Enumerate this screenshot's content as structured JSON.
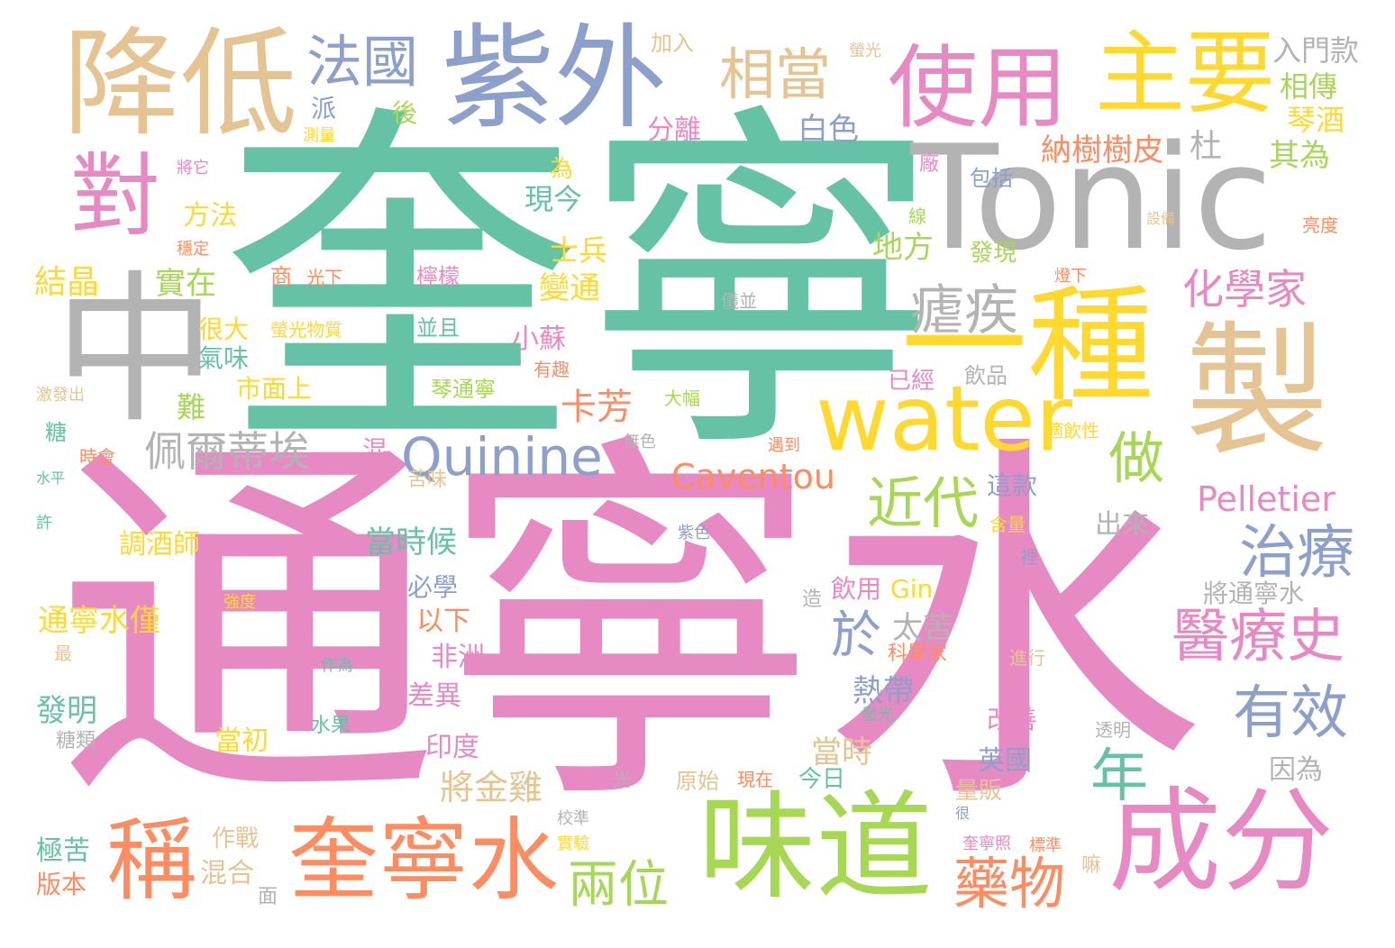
{
  "colors": {
    "green": "#66c2a5",
    "orange": "#fc8d62",
    "blue": "#8da0cb",
    "pink": "#e78ac3",
    "lime": "#a6d854",
    "yellow": "#ffd92f",
    "tan": "#e5c494",
    "gray": "#b3b3b3"
  },
  "words": [
    {
      "text": "奎寧",
      "color": "green"
    },
    {
      "text": "通寧水",
      "color": "pink"
    },
    {
      "text": "Tonic",
      "color": "gray"
    },
    {
      "text": "中",
      "color": "gray"
    },
    {
      "text": "降低",
      "color": "tan"
    },
    {
      "text": "紫外",
      "color": "blue"
    },
    {
      "text": "使用",
      "color": "pink"
    },
    {
      "text": "主要",
      "color": "yellow"
    },
    {
      "text": "對",
      "color": "pink"
    },
    {
      "text": "一種",
      "color": "yellow"
    },
    {
      "text": "製",
      "color": "tan"
    },
    {
      "text": "water",
      "color": "yellow"
    },
    {
      "text": "味道",
      "color": "lime"
    },
    {
      "text": "成分",
      "color": "pink"
    },
    {
      "text": "奎寧水",
      "color": "orange"
    },
    {
      "text": "稱",
      "color": "orange"
    },
    {
      "text": "Quinine",
      "color": "blue"
    },
    {
      "text": "法國",
      "color": "blue"
    },
    {
      "text": "相當",
      "color": "tan"
    },
    {
      "text": "瘧疾",
      "color": "gray"
    },
    {
      "text": "化學家",
      "color": "pink"
    },
    {
      "text": "近代",
      "color": "lime"
    },
    {
      "text": "做",
      "color": "lime"
    },
    {
      "text": "治療",
      "color": "blue"
    },
    {
      "text": "醫療史",
      "color": "pink"
    },
    {
      "text": "有效",
      "color": "blue"
    },
    {
      "text": "年",
      "color": "green"
    },
    {
      "text": "藥物",
      "color": "orange"
    },
    {
      "text": "兩位",
      "color": "lime"
    },
    {
      "text": "於",
      "color": "blue"
    },
    {
      "text": "佩爾蒂埃",
      "color": "gray"
    },
    {
      "text": "Caventou",
      "color": "orange"
    },
    {
      "text": "Pelletier",
      "color": "pink"
    },
    {
      "text": "卡芳",
      "color": "orange"
    },
    {
      "text": "納樹樹皮",
      "color": "orange"
    },
    {
      "text": "杜",
      "color": "gray"
    },
    {
      "text": "其為",
      "color": "lime"
    },
    {
      "text": "相傳",
      "color": "lime"
    },
    {
      "text": "琴酒",
      "color": "yellow"
    },
    {
      "text": "入門款",
      "color": "gray"
    },
    {
      "text": "白色",
      "color": "blue"
    },
    {
      "text": "分離",
      "color": "pink"
    },
    {
      "text": "加入",
      "color": "tan"
    },
    {
      "text": "螢光",
      "color": "tan"
    },
    {
      "text": "派",
      "color": "blue"
    },
    {
      "text": "後",
      "color": "lime"
    },
    {
      "text": "測量",
      "color": "yellow"
    },
    {
      "text": "將它",
      "color": "pink"
    },
    {
      "text": "方法",
      "color": "yellow"
    },
    {
      "text": "穩定",
      "color": "orange"
    },
    {
      "text": "結晶",
      "color": "yellow"
    },
    {
      "text": "實在",
      "color": "lime"
    },
    {
      "text": "商",
      "color": "orange"
    },
    {
      "text": "光下",
      "color": "orange"
    },
    {
      "text": "檸檬",
      "color": "pink"
    },
    {
      "text": "士兵",
      "color": "yellow"
    },
    {
      "text": "變通",
      "color": "yellow"
    },
    {
      "text": "現今",
      "color": "green"
    },
    {
      "text": "為",
      "color": "yellow"
    },
    {
      "text": "地方",
      "color": "lime"
    },
    {
      "text": "廠",
      "color": "pink"
    },
    {
      "text": "包括",
      "color": "blue"
    },
    {
      "text": "線",
      "color": "lime"
    },
    {
      "text": "發現",
      "color": "lime"
    },
    {
      "text": "設備",
      "color": "tan"
    },
    {
      "text": "亮度",
      "color": "orange"
    },
    {
      "text": "燈下",
      "color": "orange"
    },
    {
      "text": "儀並",
      "color": "gray"
    },
    {
      "text": "很大",
      "color": "yellow"
    },
    {
      "text": "氣味",
      "color": "green"
    },
    {
      "text": "螢光物質",
      "color": "yellow"
    },
    {
      "text": "並且",
      "color": "green"
    },
    {
      "text": "小蘇",
      "color": "pink"
    },
    {
      "text": "有趣",
      "color": "orange"
    },
    {
      "text": "激發出",
      "color": "tan"
    },
    {
      "text": "難",
      "color": "lime"
    },
    {
      "text": "市面上",
      "color": "yellow"
    },
    {
      "text": "琴通寧",
      "color": "lime"
    },
    {
      "text": "大幅",
      "color": "lime"
    },
    {
      "text": "已經",
      "color": "pink"
    },
    {
      "text": "飲品",
      "color": "gray"
    },
    {
      "text": "適飲性",
      "color": "yellow"
    },
    {
      "text": "糖",
      "color": "green"
    },
    {
      "text": "時會",
      "color": "orange"
    },
    {
      "text": "混",
      "color": "pink"
    },
    {
      "text": "無色",
      "color": "gray"
    },
    {
      "text": "遇到",
      "color": "orange"
    },
    {
      "text": "這款",
      "color": "blue"
    },
    {
      "text": "水平",
      "color": "green"
    },
    {
      "text": "苦味",
      "color": "tan"
    },
    {
      "text": "許",
      "color": "green"
    },
    {
      "text": "當時候",
      "color": "green"
    },
    {
      "text": "調酒師",
      "color": "yellow"
    },
    {
      "text": "含量",
      "color": "yellow"
    },
    {
      "text": "紫色",
      "color": "blue"
    },
    {
      "text": "出來",
      "color": "gray"
    },
    {
      "text": "裡",
      "color": "blue"
    },
    {
      "text": "必學",
      "color": "blue"
    },
    {
      "text": "飲用",
      "color": "pink"
    },
    {
      "text": "Gin",
      "color": "yellow"
    },
    {
      "text": "將通寧水",
      "color": "gray"
    },
    {
      "text": "通寧水僅",
      "color": "yellow"
    },
    {
      "text": "強度",
      "color": "yellow"
    },
    {
      "text": "以下",
      "color": "orange"
    },
    {
      "text": "造",
      "color": "gray"
    },
    {
      "text": "太苦",
      "color": "gray"
    },
    {
      "text": "科學家",
      "color": "orange"
    },
    {
      "text": "最",
      "color": "tan"
    },
    {
      "text": "作為",
      "color": "green"
    },
    {
      "text": "非洲",
      "color": "pink"
    },
    {
      "text": "進行",
      "color": "tan"
    },
    {
      "text": "熱帶",
      "color": "blue"
    },
    {
      "text": "發光",
      "color": "green"
    },
    {
      "text": "發明",
      "color": "green"
    },
    {
      "text": "差異",
      "color": "pink"
    },
    {
      "text": "改善",
      "color": "pink"
    },
    {
      "text": "糖類",
      "color": "gray"
    },
    {
      "text": "水果",
      "color": "green"
    },
    {
      "text": "透明",
      "color": "gray"
    },
    {
      "text": "當初",
      "color": "yellow"
    },
    {
      "text": "印度",
      "color": "pink"
    },
    {
      "text": "當時",
      "color": "tan"
    },
    {
      "text": "英國",
      "color": "blue"
    },
    {
      "text": "因為",
      "color": "gray"
    },
    {
      "text": "光",
      "color": "gray"
    },
    {
      "text": "原始",
      "color": "tan"
    },
    {
      "text": "現在",
      "color": "orange"
    },
    {
      "text": "今日",
      "color": "green"
    },
    {
      "text": "將金雞",
      "color": "tan"
    },
    {
      "text": "量販",
      "color": "tan"
    },
    {
      "text": "作戰",
      "color": "tan"
    },
    {
      "text": "校準",
      "color": "gray"
    },
    {
      "text": "很",
      "color": "blue"
    },
    {
      "text": "極苦",
      "color": "green"
    },
    {
      "text": "實驗",
      "color": "yellow"
    },
    {
      "text": "奎寧照",
      "color": "pink"
    },
    {
      "text": "標準",
      "color": "orange"
    },
    {
      "text": "嘛",
      "color": "tan"
    },
    {
      "text": "混合",
      "color": "tan"
    },
    {
      "text": "版本",
      "color": "orange"
    },
    {
      "text": "面",
      "color": "gray"
    }
  ]
}
